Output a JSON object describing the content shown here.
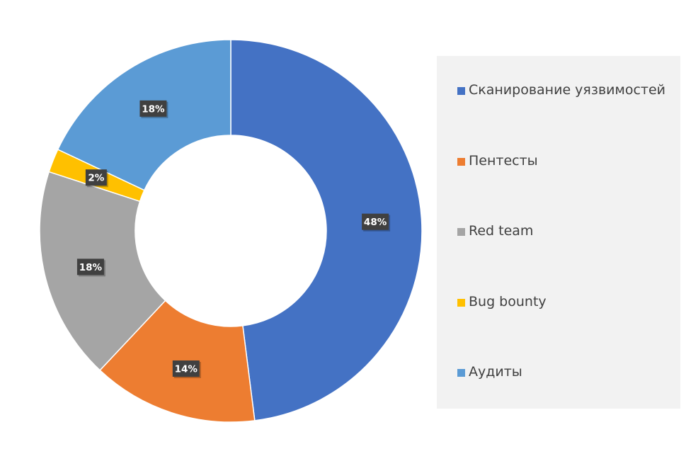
{
  "chart_data": {
    "type": "pie",
    "donut": true,
    "start_angle_deg": 0,
    "direction": "clockwise",
    "slices": [
      {
        "label": "Сканирование уязвимостей",
        "value": 48,
        "display": "48%",
        "color": "#4472C4"
      },
      {
        "label": "Пентесты",
        "value": 14,
        "display": "14%",
        "color": "#ED7D31"
      },
      {
        "label": "Red team",
        "value": 18,
        "display": "18%",
        "color": "#A5A5A5"
      },
      {
        "label": "Bug bounty",
        "value": 2,
        "display": "2%",
        "color": "#FFC000"
      },
      {
        "label": "Аудиты",
        "value": 18,
        "display": "18%",
        "color": "#5B9BD5"
      }
    ],
    "legend_position": "right"
  }
}
